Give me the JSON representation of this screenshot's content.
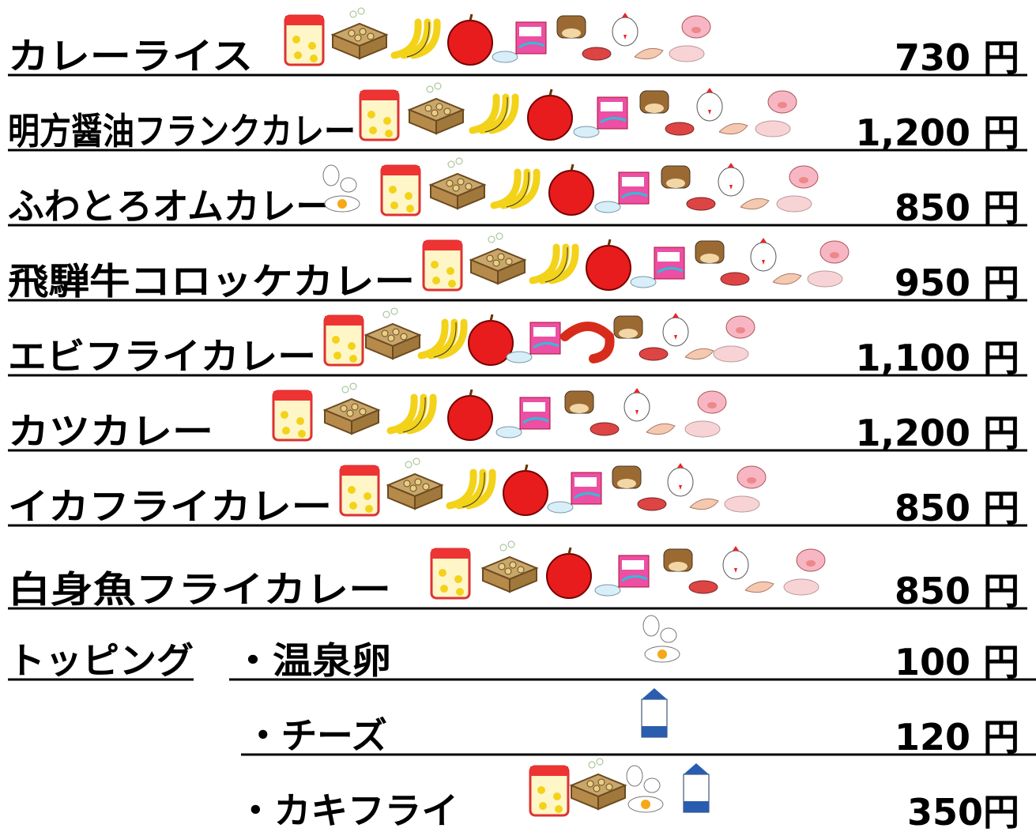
{
  "menu": [
    {
      "name": "カレーライス",
      "price": "730 円"
    },
    {
      "name": "明方醤油フランクカレー",
      "price": "1,200 円"
    },
    {
      "name": "ふわとろオムカレー",
      "price": "850 円"
    },
    {
      "name": "飛騨牛コロッケカレー",
      "price": "950 円"
    },
    {
      "name": "エビフライカレー",
      "price": "1,100 円"
    },
    {
      "name": "カツカレー",
      "price": "1,200 円"
    },
    {
      "name": "イカフライカレー",
      "price": "850 円"
    },
    {
      "name": "白身魚フライカレー",
      "price": "850 円"
    }
  ],
  "toppings": {
    "label": "トッピング",
    "items": [
      {
        "name": "・温泉卵",
        "price": "100 円"
      },
      {
        "name": "・チーズ",
        "price": "120 円"
      },
      {
        "name": "・カキフライ",
        "price": "350円"
      }
    ]
  }
}
